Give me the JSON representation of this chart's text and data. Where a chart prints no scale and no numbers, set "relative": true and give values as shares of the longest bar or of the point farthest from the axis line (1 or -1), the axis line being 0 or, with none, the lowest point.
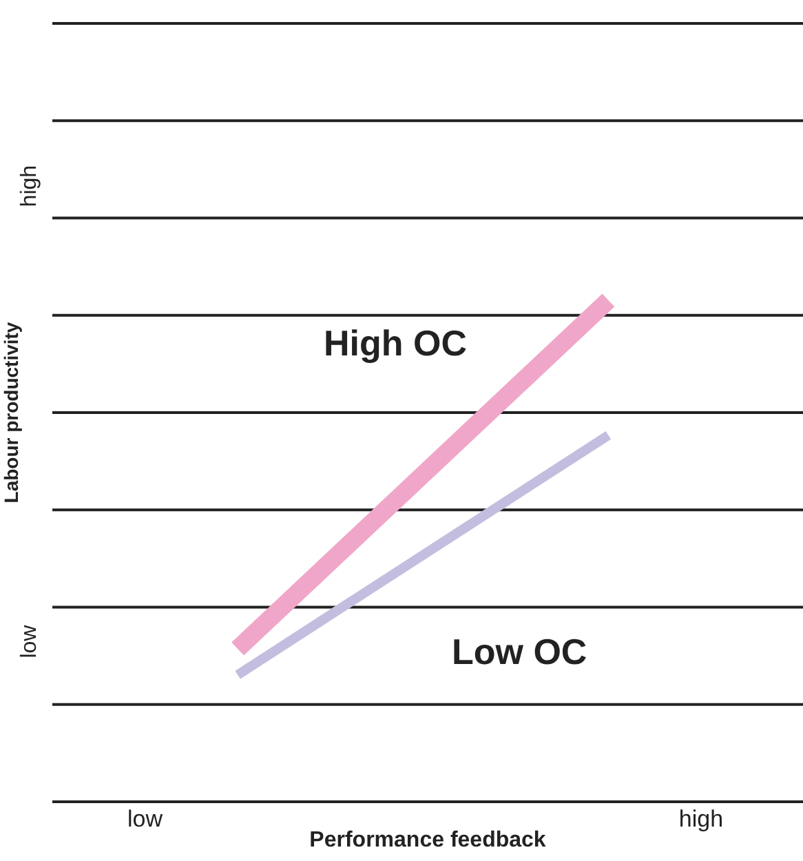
{
  "chart_data": {
    "type": "line",
    "xlabel": "Performance feedback",
    "ylabel": "Labour productivity",
    "relative": true,
    "categories": [
      "low",
      null,
      null,
      null,
      null,
      null,
      "high"
    ],
    "annotations": [
      "high",
      "low"
    ],
    "grid": true,
    "legend": false,
    "marker": "none",
    "line_style": "solid",
    "series": [
      {
        "name": "High OC",
        "color": "#f0a6c8",
        "values": [
          null,
          0.305,
          null,
          null,
          null,
          1.0,
          null
        ]
      },
      {
        "name": "Low OC",
        "color": "#c3bedf",
        "values": [
          null,
          0.253,
          null,
          null,
          null,
          0.731,
          null
        ]
      }
    ]
  }
}
